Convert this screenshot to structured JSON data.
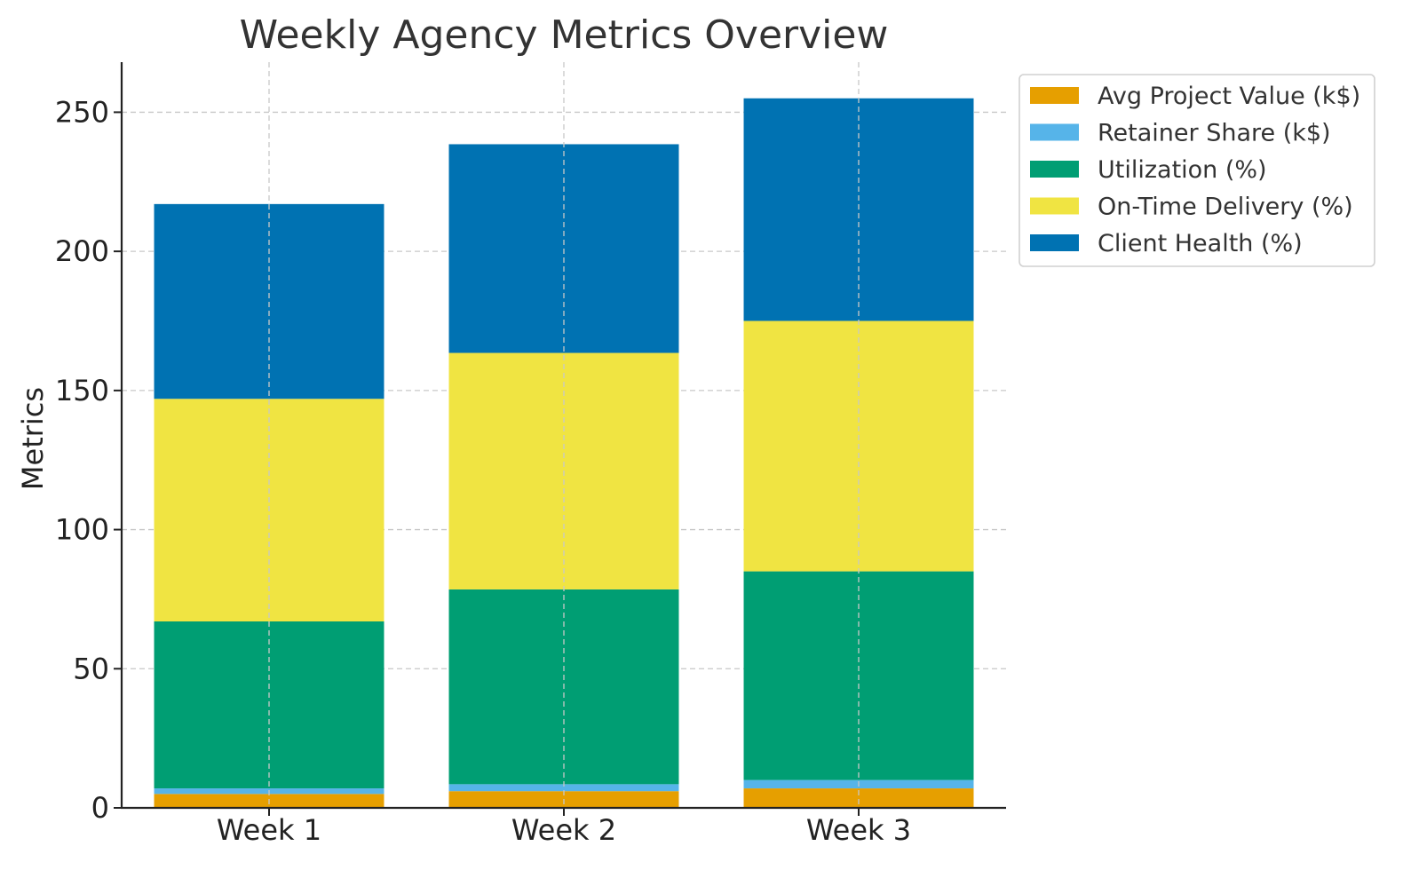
{
  "chart_data": {
    "type": "bar",
    "stacked": true,
    "title": "Weekly Agency Metrics Overview",
    "xlabel": "",
    "ylabel": "Metrics",
    "categories": [
      "Week 1",
      "Week 2",
      "Week 3"
    ],
    "ylim": [
      0,
      268
    ],
    "yticks": [
      0,
      50,
      100,
      150,
      200,
      250
    ],
    "grid": true,
    "legend_position": "upper right, outside plot",
    "series": [
      {
        "name": "Avg Project Value (k$)",
        "color": "#E69F00",
        "values": [
          5,
          6,
          7
        ]
      },
      {
        "name": "Retainer Share (k$)",
        "color": "#56B4E9",
        "values": [
          2,
          2.5,
          3
        ]
      },
      {
        "name": "Utilization (%)",
        "color": "#009E73",
        "values": [
          60,
          70,
          75
        ]
      },
      {
        "name": "On-Time Delivery (%)",
        "color": "#F0E442",
        "values": [
          80,
          85,
          90
        ]
      },
      {
        "name": "Client Health (%)",
        "color": "#0072B2",
        "values": [
          70,
          75,
          80
        ]
      }
    ]
  }
}
